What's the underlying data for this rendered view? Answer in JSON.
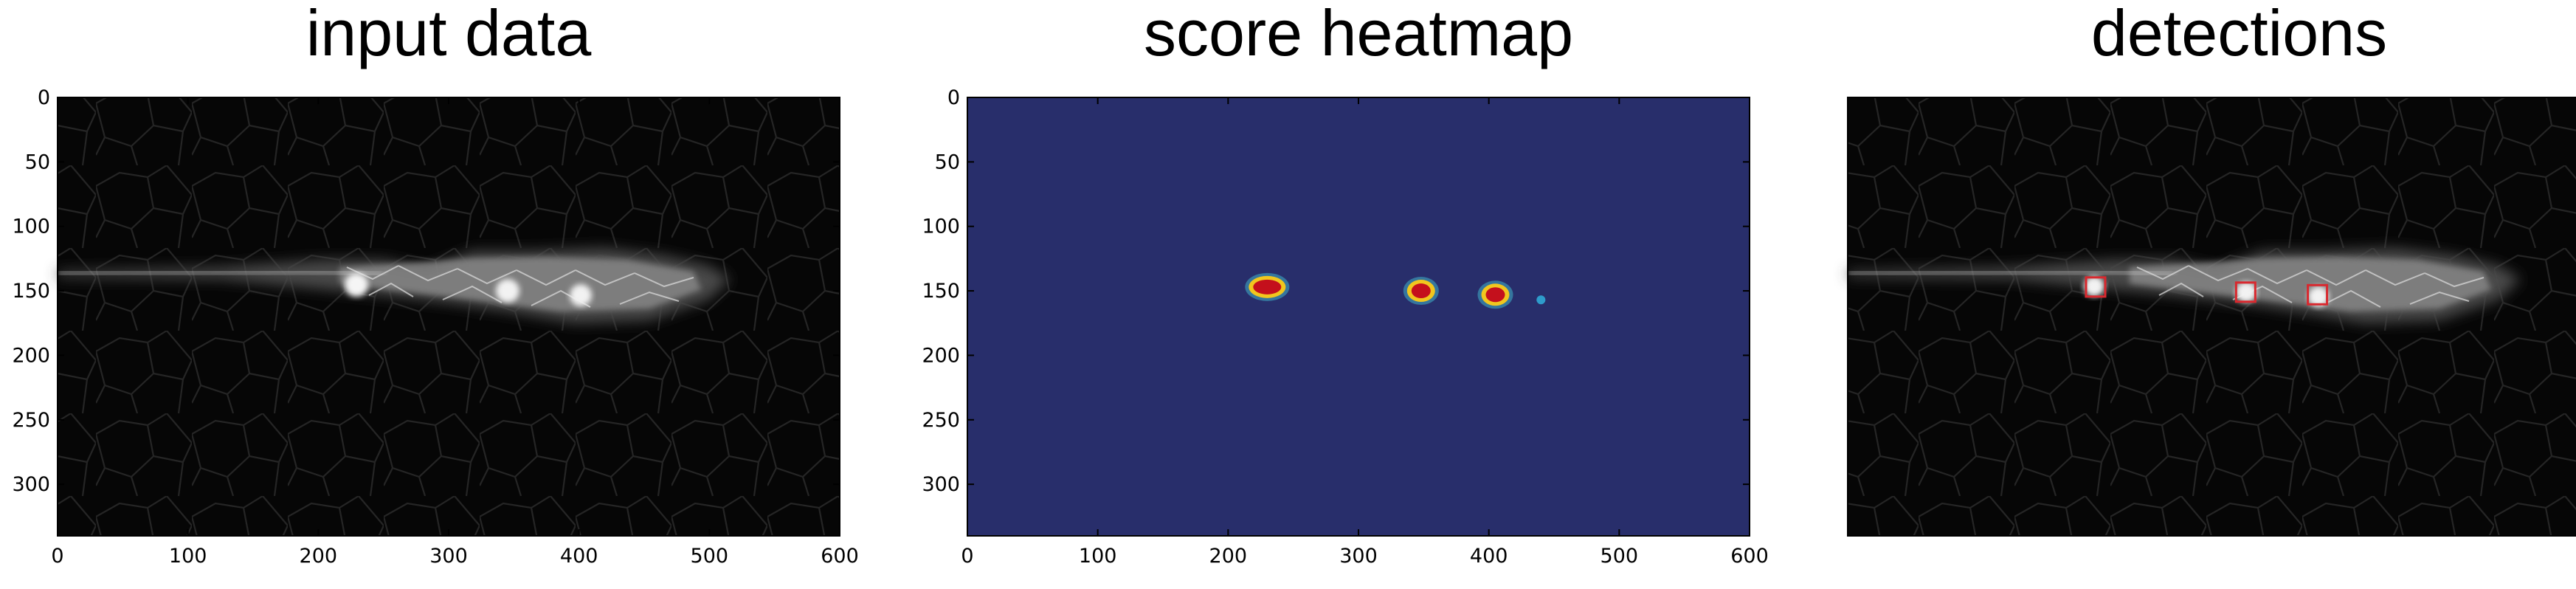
{
  "panels": [
    {
      "title": "input data"
    },
    {
      "title": "score heatmap"
    },
    {
      "title": "detections"
    }
  ],
  "colors": {
    "heatmap_background": "#282e6b",
    "image_background": "#060606",
    "detection_box": "#d9282e",
    "hot_spot": "#c4101c",
    "warm_spot": "#f1c61e",
    "cool_spot": "#2fa8d6"
  },
  "chart_data": [
    {
      "type": "heatmap",
      "title": "input data",
      "content": "grayscale microscopy image of an elongated cell cluster",
      "xlim": [
        0,
        600
      ],
      "ylim": [
        340,
        0
      ],
      "xticks": [
        0,
        100,
        200,
        300,
        400,
        500,
        600
      ],
      "xtick_labels": [
        "0",
        "100",
        "200",
        "300",
        "400",
        "500",
        "600"
      ],
      "yticks": [
        0,
        50,
        100,
        150,
        200,
        250,
        300
      ],
      "ytick_labels": [
        "0",
        "50",
        "100",
        "150",
        "200",
        "250",
        "300"
      ]
    },
    {
      "type": "heatmap",
      "title": "score heatmap",
      "xlim": [
        0,
        600
      ],
      "ylim": [
        340,
        0
      ],
      "xticks": [
        0,
        100,
        200,
        300,
        400,
        500,
        600
      ],
      "xtick_labels": [
        "0",
        "100",
        "200",
        "300",
        "400",
        "500",
        "600"
      ],
      "yticks": [
        0,
        50,
        100,
        150,
        200,
        250,
        300
      ],
      "ytick_labels": [
        "0",
        "50",
        "100",
        "150",
        "200",
        "250",
        "300"
      ],
      "hotspots": [
        {
          "x": 230,
          "y": 147,
          "intensity": "high"
        },
        {
          "x": 348,
          "y": 150,
          "intensity": "high"
        },
        {
          "x": 405,
          "y": 153,
          "intensity": "high"
        },
        {
          "x": 440,
          "y": 157,
          "intensity": "low"
        }
      ]
    },
    {
      "type": "heatmap",
      "title": "detections",
      "content": "input image with detection boxes",
      "axes_visible": false,
      "detections": [
        {
          "x": 190,
          "y": 147
        },
        {
          "x": 305,
          "y": 151
        },
        {
          "x": 360,
          "y": 153
        }
      ]
    }
  ]
}
